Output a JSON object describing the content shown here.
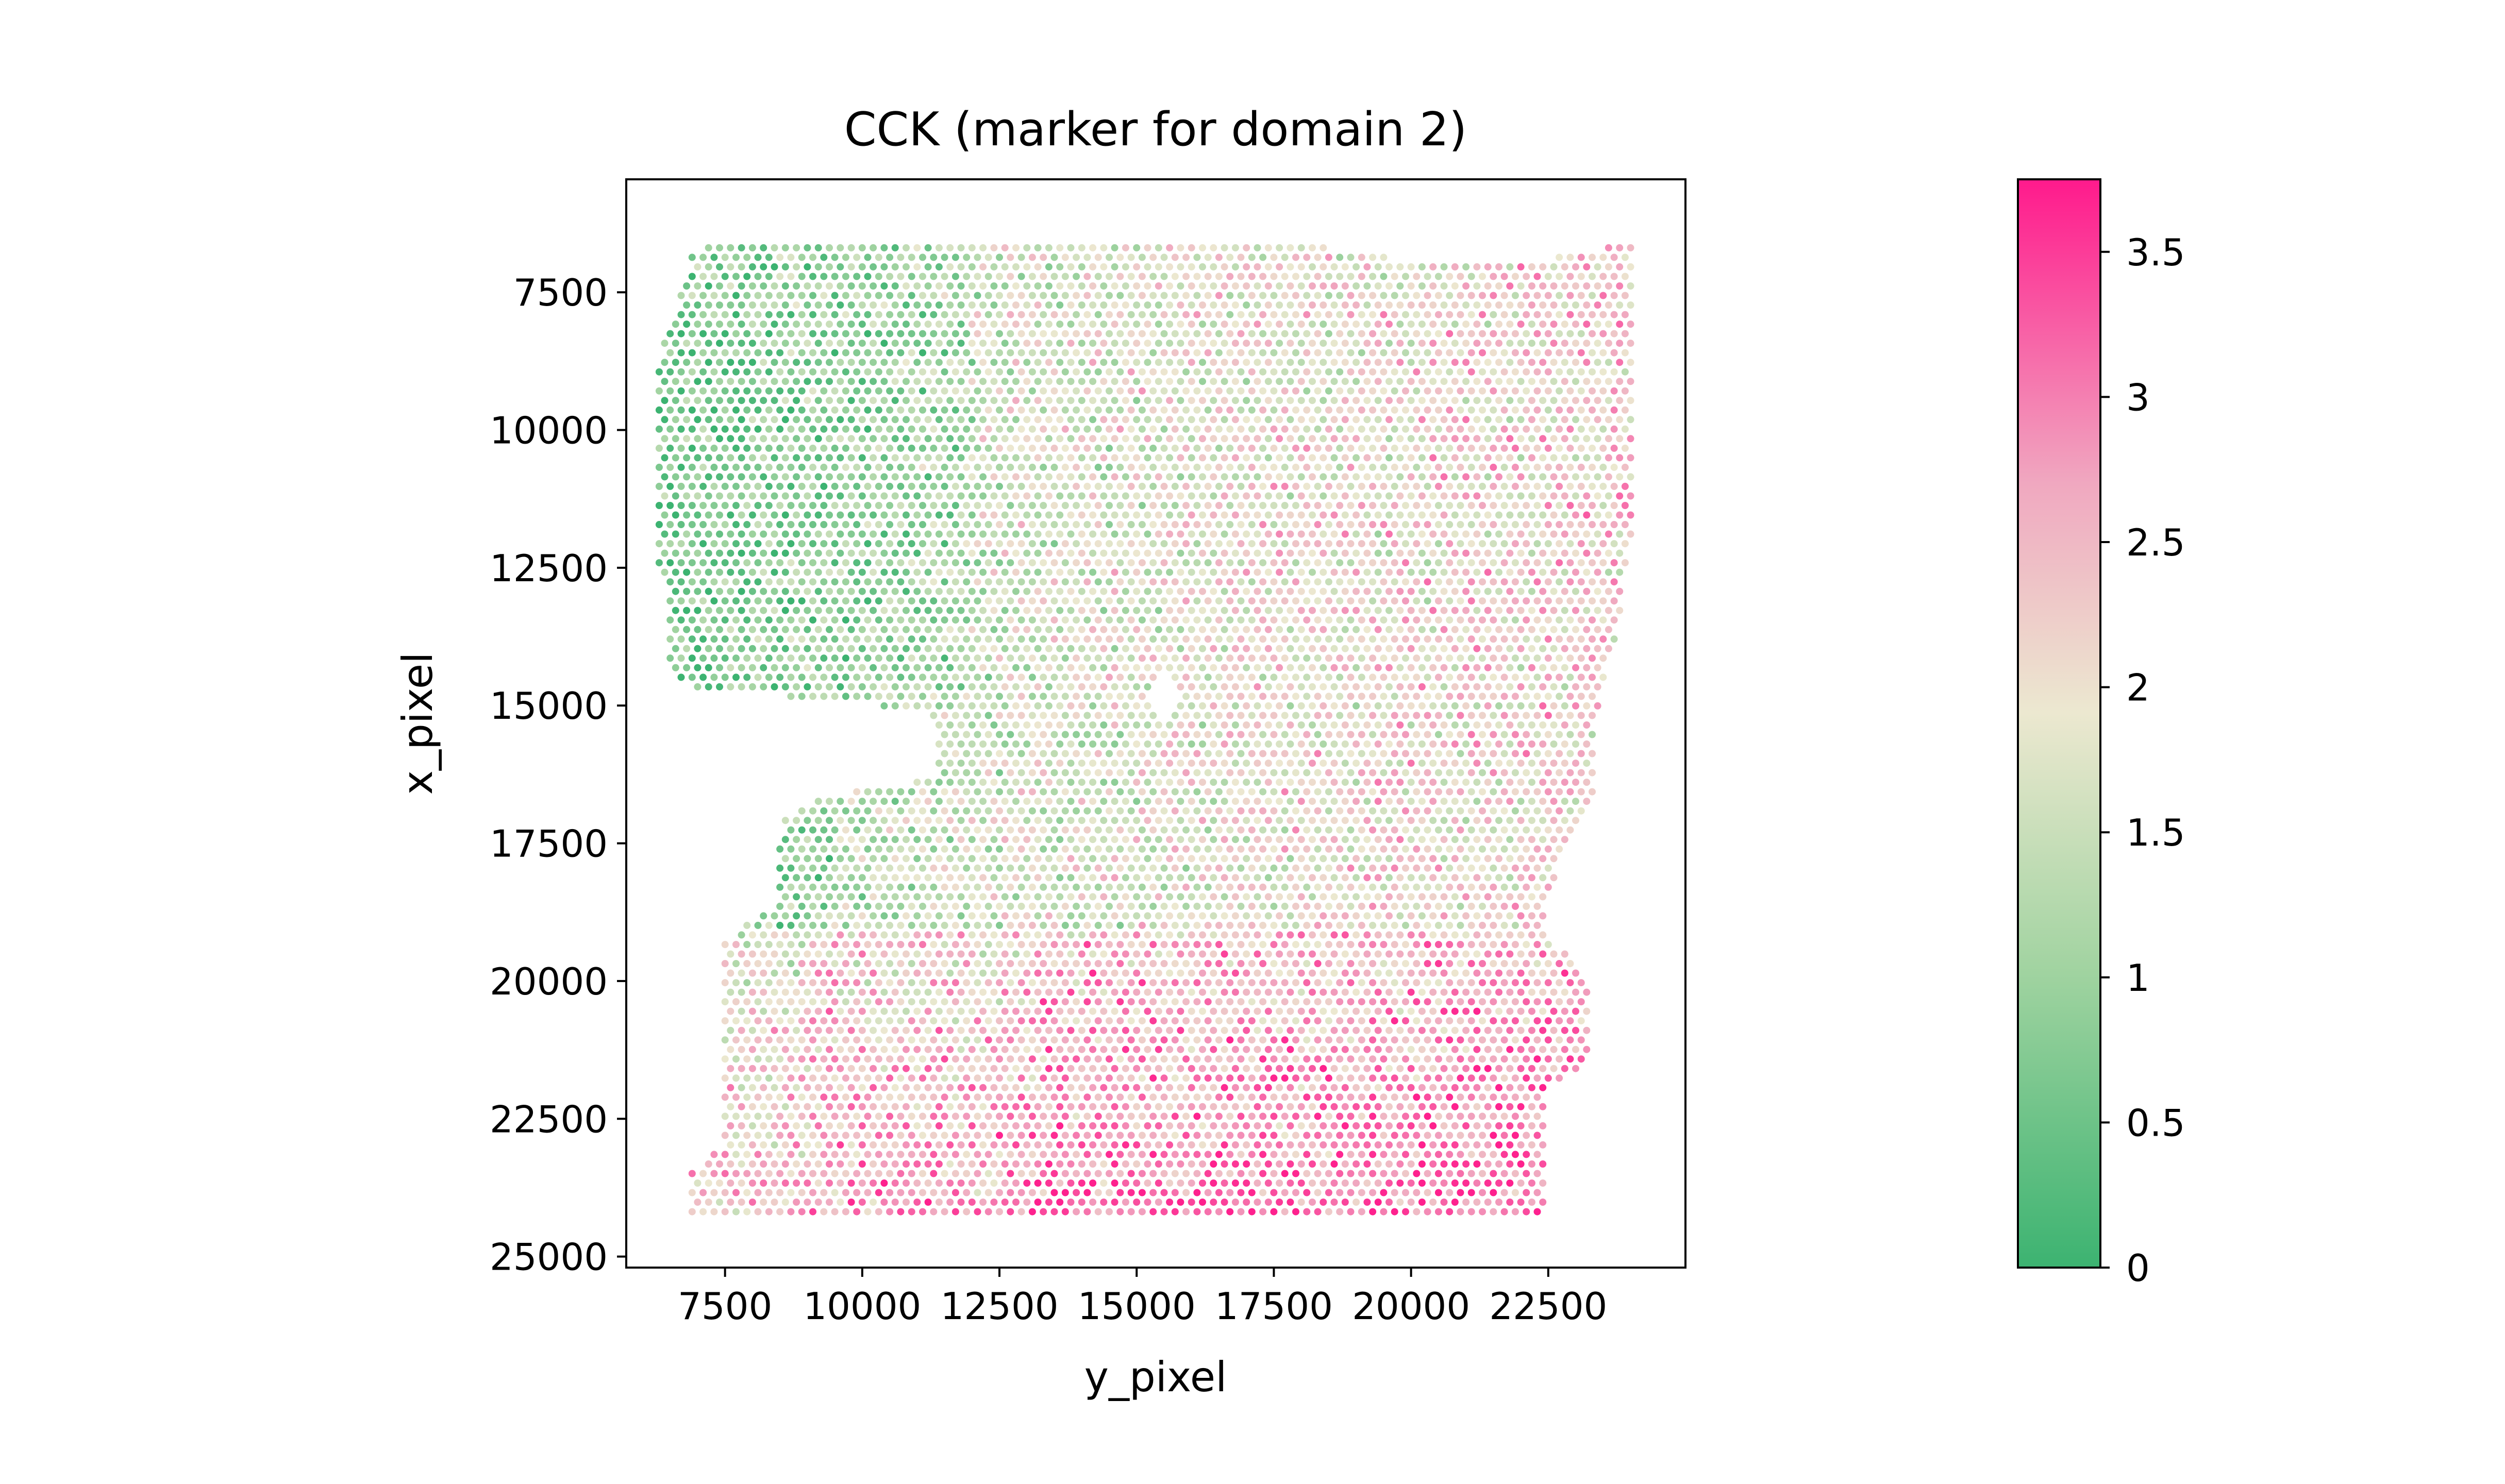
{
  "chart_data": {
    "type": "scatter",
    "title": "CCK (marker for domain 2)",
    "xlabel": "y_pixel",
    "ylabel": "x_pixel",
    "xlim": [
      5700,
      25000
    ],
    "ylim": [
      25200,
      5450
    ],
    "y_inverted": true,
    "aspect": "equal",
    "grid": false,
    "legend": "none",
    "xticks": [
      7500,
      10000,
      12500,
      15000,
      17500,
      20000,
      22500
    ],
    "xtick_labels": [
      "7500",
      "10000",
      "12500",
      "15000",
      "17500",
      "20000",
      "22500"
    ],
    "yticks": [
      7500,
      10000,
      12500,
      15000,
      17500,
      20000,
      22500,
      25000
    ],
    "ytick_labels": [
      "7500",
      "10000",
      "12500",
      "15000",
      "17500",
      "20000",
      "22500",
      "25000"
    ],
    "color_by": "CCK expression",
    "colorbar": {
      "min": 0,
      "max": 3.75,
      "ticks": [
        0,
        0.5,
        1,
        1.5,
        2,
        2.5,
        3,
        3.5
      ],
      "tick_labels": [
        "0",
        "0.5",
        "1",
        "1.5",
        "2",
        "2.5",
        "3",
        "3.5"
      ],
      "colormap": [
        "#3cb371",
        "#a0d3a0",
        "#ece8d0",
        "#f0a8c0",
        "#ff1a8c"
      ]
    },
    "spot_spacing": 200,
    "tissue_regions": {
      "upper_left_green": {
        "x_range": [
          6300,
          12000
        ],
        "y_range": [
          6600,
          14500
        ],
        "mean_value": 0.8
      },
      "central_mixed": {
        "x_range": [
          12000,
          18000
        ],
        "y_range": [
          6000,
          17000
        ],
        "mean_value": 1.6
      },
      "right_mixed_pink": {
        "x_range": [
          18000,
          24000
        ],
        "y_range": [
          6500,
          18000
        ],
        "mean_value": 2.0
      },
      "lower_pink": {
        "x_range": [
          7000,
          22500
        ],
        "y_range": [
          19000,
          24400
        ],
        "mean_value": 2.5
      }
    }
  }
}
